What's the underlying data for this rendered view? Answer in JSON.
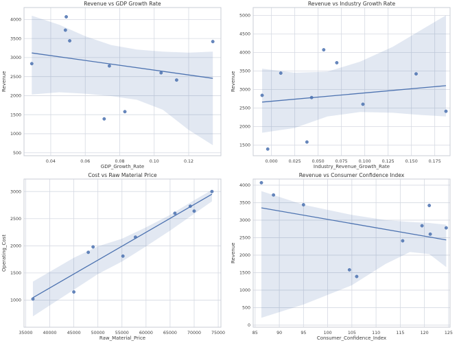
{
  "figure": {
    "background": "#ffffff",
    "colors": {
      "grid": "#d5d9e2",
      "spine": "#c9cdd6",
      "point": "#4c72b0",
      "line": "#4c72b0",
      "band": "#4c72b0",
      "band_opacity": 0.16,
      "title_text": "#323232",
      "tick_text": "#3d3d3d"
    }
  },
  "chart_data": [
    {
      "type": "scatter",
      "title": "Revenue vs GDP Growth Rate",
      "xlabel": "GDP_Growth_Rate",
      "ylabel": "Revenue",
      "x": [
        0.029,
        0.049,
        0.0485,
        0.051,
        0.074,
        0.071,
        0.083,
        0.104,
        0.113,
        0.134
      ],
      "y": [
        2840,
        4070,
        3720,
        3440,
        2780,
        1390,
        1580,
        2600,
        2410,
        3420
      ],
      "trend": "linear",
      "grid": true,
      "legend": false,
      "xlim": [
        0.0245,
        0.1387
      ],
      "ylim": [
        423,
        4313
      ],
      "xticks": [
        0.04,
        0.06,
        0.08,
        0.1,
        0.12
      ],
      "xtick_labels": [
        "0.04",
        "0.06",
        "0.08",
        "0.10",
        "0.12"
      ],
      "yticks": [
        500,
        1000,
        1500,
        2000,
        2500,
        3000,
        3500,
        4000
      ],
      "ytick_labels": [
        "500",
        "1000",
        "1500",
        "2000",
        "2500",
        "3000",
        "3500",
        "4000"
      ],
      "ci_band": {
        "x": [
          0.029,
          0.045,
          0.06,
          0.075,
          0.09,
          0.105,
          0.12,
          0.134
        ],
        "upper": [
          4100,
          3860,
          3560,
          3330,
          3210,
          3155,
          3130,
          3155
        ],
        "lower": [
          2030,
          2090,
          2050,
          1990,
          1890,
          1630,
          1100,
          700
        ]
      }
    },
    {
      "type": "scatter",
      "title": "Revenue vs Industry Growth Rate",
      "xlabel": "Industry_Revenue_Growth_Rate",
      "ylabel": "Revenue",
      "x": [
        -0.01,
        -0.004,
        0.01,
        0.038,
        0.043,
        0.056,
        0.07,
        0.098,
        0.155,
        0.187
      ],
      "y": [
        2840,
        1390,
        3440,
        1580,
        2780,
        4070,
        3720,
        2600,
        3420,
        2410
      ],
      "trend": "linear",
      "grid": true,
      "legend": false,
      "xlim": [
        -0.0196,
        0.1914
      ],
      "ylim": [
        1210,
        5210
      ],
      "xticks": [
        0.0,
        0.025,
        0.05,
        0.075,
        0.1,
        0.125,
        0.15,
        0.175
      ],
      "xtick_labels": [
        "0.000",
        "0.025",
        "0.050",
        "0.075",
        "0.100",
        "0.125",
        "0.150",
        "0.175"
      ],
      "yticks": [
        1500,
        2000,
        2500,
        3000,
        3500,
        4000,
        4500,
        5000
      ],
      "ytick_labels": [
        "1500",
        "2000",
        "2500",
        "3000",
        "3500",
        "4000",
        "4500",
        "5000"
      ],
      "ci_band": {
        "x": [
          -0.01,
          0.025,
          0.06,
          0.095,
          0.13,
          0.16,
          0.187
        ],
        "upper": [
          3560,
          3450,
          3480,
          3750,
          4150,
          4600,
          5000
        ],
        "lower": [
          1830,
          1960,
          2270,
          2390,
          2370,
          2310,
          2270
        ]
      }
    },
    {
      "type": "scatter",
      "title": "Cost vs Raw Material Price",
      "xlabel": "Raw_Material_Price",
      "ylabel": "Operating_Cost",
      "x": [
        36500,
        45000,
        48000,
        49000,
        55200,
        57800,
        66000,
        69200,
        70000,
        73700
      ],
      "y": [
        1020,
        1150,
        1880,
        1980,
        1810,
        2160,
        2600,
        2730,
        2640,
        3000
      ],
      "trend": "linear",
      "grid": true,
      "legend": false,
      "xlim": [
        34650,
        75560
      ],
      "ylim": [
        500,
        3230
      ],
      "xticks": [
        35000,
        40000,
        45000,
        50000,
        55000,
        60000,
        65000,
        70000,
        75000
      ],
      "xtick_labels": [
        "35000",
        "40000",
        "45000",
        "50000",
        "55000",
        "60000",
        "65000",
        "70000",
        "75000"
      ],
      "yticks": [
        1000,
        1500,
        2000,
        2500,
        3000
      ],
      "ytick_labels": [
        "1000",
        "1500",
        "2000",
        "2500",
        "3000"
      ],
      "ci_band": {
        "x": [
          36500,
          45000,
          50000,
          55000,
          60000,
          65000,
          70000,
          73700
        ],
        "upper": [
          1340,
          1780,
          1990,
          2130,
          2340,
          2570,
          2840,
          3030
        ],
        "lower": [
          700,
          1190,
          1480,
          1710,
          1990,
          2280,
          2590,
          2820
        ]
      }
    },
    {
      "type": "scatter",
      "title": "Revenue vs Consumer Confidence Index",
      "xlabel": "Consumer_Confidence_Index",
      "ylabel": "Revenue",
      "x": [
        86.3,
        88.8,
        95.0,
        104.5,
        106.0,
        115.5,
        119.5,
        121.0,
        121.2,
        124.5
      ],
      "y": [
        4070,
        3720,
        3440,
        1580,
        1390,
        2410,
        2840,
        3420,
        2600,
        2780
      ],
      "trend": "linear",
      "grid": true,
      "legend": false,
      "xlim": [
        84.6,
        125.3
      ],
      "ylim": [
        -60,
        4175
      ],
      "xticks": [
        85,
        90,
        95,
        100,
        105,
        110,
        115,
        120,
        125
      ],
      "xtick_labels": [
        "85",
        "90",
        "95",
        "100",
        "105",
        "110",
        "115",
        "120",
        "125"
      ],
      "yticks": [
        0,
        500,
        1000,
        1500,
        2000,
        2500,
        3000,
        3500,
        4000
      ],
      "ytick_labels": [
        "0",
        "500",
        "1000",
        "1500",
        "2000",
        "2500",
        "3000",
        "3500",
        "4000"
      ],
      "ci_band": {
        "x": [
          86.3,
          95,
          105,
          112,
          117,
          121,
          124.5
        ],
        "upper": [
          3830,
          3440,
          3150,
          3000,
          2950,
          2920,
          2870
        ],
        "lower": [
          210,
          590,
          1140,
          1750,
          2090,
          2030,
          1660
        ]
      }
    }
  ]
}
